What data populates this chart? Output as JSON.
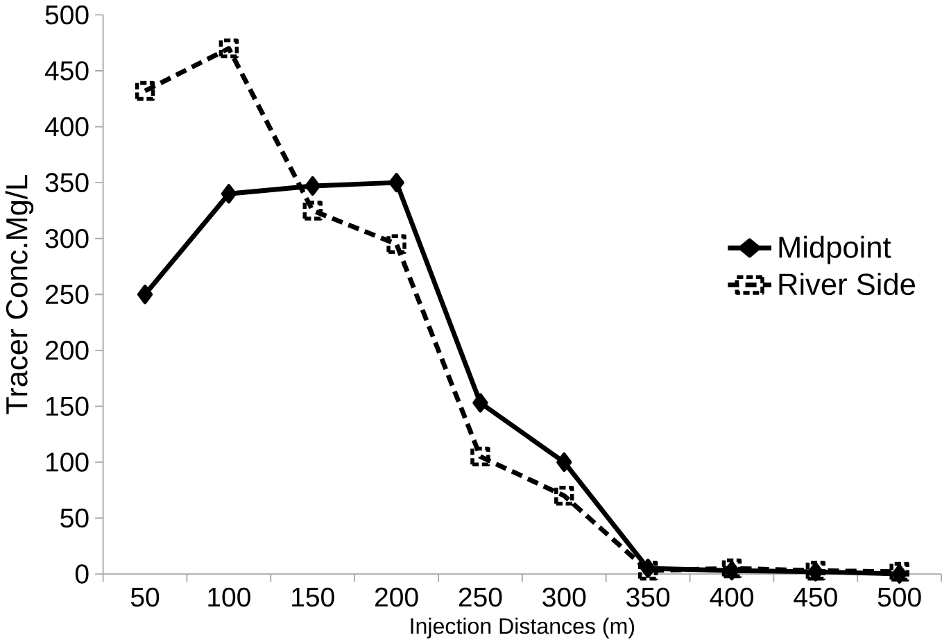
{
  "chart_data": {
    "type": "line",
    "xlabel": "Injection Distances (m)",
    "ylabel": "Tracer Conc.Mg/L",
    "categories": [
      "50",
      "100",
      "150",
      "200",
      "250",
      "300",
      "350",
      "400",
      "450",
      "500"
    ],
    "series": [
      {
        "name": "Midpoint",
        "color": "#000000",
        "marker": "diamond",
        "line_style": "solid",
        "values": [
          250,
          340,
          347,
          350,
          153,
          100,
          5,
          3,
          2,
          0
        ]
      },
      {
        "name": "River Side",
        "color": "#000000",
        "marker": "square",
        "line_style": "dashed",
        "values": [
          432,
          470,
          325,
          295,
          105,
          70,
          3,
          5,
          3,
          2
        ]
      }
    ],
    "ylim": [
      0,
      500
    ],
    "yticks": [
      0,
      50,
      100,
      150,
      200,
      250,
      300,
      350,
      400,
      450,
      500
    ],
    "legend": "right",
    "grid": false
  }
}
